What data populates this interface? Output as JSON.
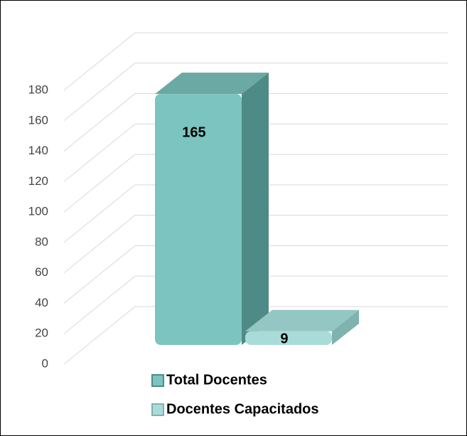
{
  "chart_data": {
    "type": "bar3d",
    "series": [
      {
        "name": "Total Docentes",
        "color": "#7cc4bf",
        "values": [
          165
        ]
      },
      {
        "name": "Docentes Capacitados",
        "color": "#a9dcd8",
        "values": [
          9
        ]
      }
    ],
    "ylim": [
      0,
      180
    ],
    "yticks": [
      0,
      20,
      40,
      60,
      80,
      100,
      120,
      140,
      160,
      180
    ],
    "grid": true
  }
}
